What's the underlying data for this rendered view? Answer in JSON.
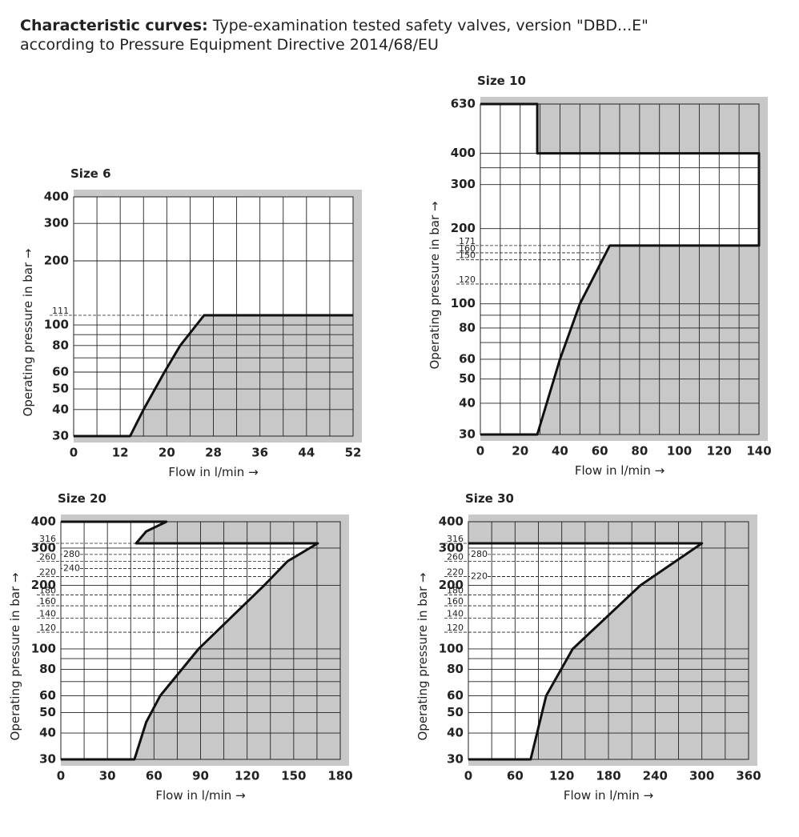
{
  "header": {
    "title_bold": "Characteristic curves:",
    "title": "Type-examination tested safety valves, version \"DBD...E\"",
    "subtitle": "according to Pressure Equipment Directive 2014/68/EU"
  },
  "chart_data": [
    {
      "type": "area",
      "title": "Size 6",
      "xlabel": "Flow in l/min →",
      "ylabel": "Operating pressure in bar →",
      "xlim": [
        0,
        52
      ],
      "xticks": [
        0,
        12,
        20,
        28,
        36,
        44,
        52
      ],
      "xminor": [
        6,
        16,
        24,
        32,
        40,
        48
      ],
      "ylim": [
        30,
        400
      ],
      "log_y": true,
      "yticks": [
        30,
        40,
        50,
        60,
        80,
        100,
        200,
        300,
        400
      ],
      "yminor": [
        70,
        90
      ],
      "dashed_yticks": [
        111
      ],
      "inner_yticks": [],
      "fill": "#c8c8c8",
      "series": [
        {
          "x": [
            0,
            13.7,
            16,
            19.6,
            22.3,
            26.4,
            52
          ],
          "y": [
            30,
            30,
            40,
            60,
            80,
            111,
            111
          ]
        }
      ]
    },
    {
      "type": "area",
      "title": "Size 10",
      "xlabel": "Flow in l/min →",
      "ylabel": "Operating pressure in bar →",
      "xlim": [
        0,
        140
      ],
      "xticks": [
        0,
        20,
        40,
        60,
        80,
        100,
        120,
        140
      ],
      "xminor": [
        10,
        30,
        50,
        70,
        90,
        110,
        130
      ],
      "ylim": [
        30,
        630
      ],
      "log_y": true,
      "yticks": [
        30,
        40,
        50,
        60,
        80,
        100,
        200,
        300,
        400,
        630
      ],
      "yminor": [
        70,
        90,
        350
      ],
      "dashed_yticks": [
        120,
        150,
        160,
        171
      ],
      "inner_yticks": [],
      "fill": "#c8c8c8",
      "series": [
        {
          "x": [
            0,
            28.6,
            40,
            50,
            65,
            140,
            140,
            28.6,
            28.6,
            0
          ],
          "y": [
            30,
            30,
            60,
            100,
            171,
            171,
            400,
            400,
            630,
            630
          ]
        }
      ]
    },
    {
      "type": "area",
      "title": "Size 20",
      "xlabel": "Flow in l/min →",
      "ylabel": "Operating pressure in bar →",
      "xlim": [
        0,
        180
      ],
      "xticks": [
        0,
        30,
        60,
        90,
        120,
        150,
        180
      ],
      "xminor": [
        15,
        45,
        75,
        105,
        135,
        165
      ],
      "ylim": [
        30,
        400
      ],
      "log_y": true,
      "yticks": [
        30,
        40,
        50,
        60,
        80,
        100,
        200,
        300,
        400
      ],
      "yminor": [
        70,
        90
      ],
      "dashed_yticks": [
        120,
        140,
        160,
        180,
        220,
        260,
        316
      ],
      "inner_yticks": [
        240,
        280
      ],
      "fill": "#c8c8c8",
      "series": [
        {
          "x": [
            0,
            47.4,
            55,
            64,
            88.7,
            131,
            146,
            165.5,
            48.5,
            55,
            68,
            0
          ],
          "y": [
            30,
            30,
            45,
            60,
            100,
            200,
            260,
            316,
            316,
            360,
            400,
            400
          ]
        }
      ]
    },
    {
      "type": "area",
      "title": "Size 30",
      "xlabel": "Flow in l/min →",
      "ylabel": "Operating pressure in bar →",
      "xlim": [
        0,
        360
      ],
      "xticks": [
        0,
        60,
        120,
        180,
        240,
        300,
        360
      ],
      "xminor": [
        30,
        90,
        150,
        210,
        270,
        330
      ],
      "ylim": [
        30,
        400
      ],
      "log_y": true,
      "yticks": [
        30,
        40,
        50,
        60,
        80,
        100,
        200,
        300,
        400
      ],
      "yminor": [
        70,
        90
      ],
      "dashed_yticks": [
        120,
        140,
        160,
        180,
        220,
        260,
        316
      ],
      "inner_yticks": [
        220,
        280
      ],
      "fill": "#c8c8c8",
      "series": [
        {
          "x": [
            0,
            80,
            100,
            134,
            221,
            300,
            0
          ],
          "y": [
            30,
            30,
            60,
            100,
            200,
            316,
            316
          ]
        }
      ]
    }
  ]
}
